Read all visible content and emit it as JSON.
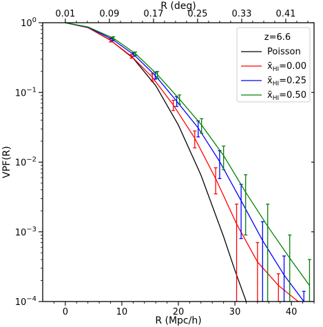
{
  "chart_data": {
    "type": "line",
    "xlabel": "R (Mpc/h)",
    "x2label": "R (deg)",
    "ylabel": "VPF(R)",
    "xlim": [
      -4,
      44
    ],
    "ylim": [
      0.0001,
      1
    ],
    "yscale": "log",
    "x_ticks": [
      0,
      10,
      20,
      30,
      40
    ],
    "x_tick_labels": [
      "0",
      "10",
      "20",
      "30",
      "40"
    ],
    "top_tick_positions": [
      0,
      7.8,
      15.6,
      23.4,
      31.2,
      39.0
    ],
    "top_tick_labels": [
      "0.01",
      "0.09",
      "0.17",
      "0.25",
      "0.33",
      "0.41"
    ],
    "y_ticks": [
      0.0001,
      0.001,
      0.01,
      0.1,
      1
    ],
    "y_tick_labels": [
      {
        "base": "10",
        "exp": "−4"
      },
      {
        "base": "10",
        "exp": "−3"
      },
      {
        "base": "10",
        "exp": "−2"
      },
      {
        "base": "10",
        "exp": "−1"
      },
      {
        "base": "10",
        "exp": "0"
      }
    ],
    "legend": {
      "title": "z=6.6",
      "position": "top-right"
    },
    "series": [
      {
        "name": "Poisson",
        "label_main": "Poisson",
        "label_sub": "",
        "label_value": "",
        "color": "#000000",
        "x": [
          0,
          4,
          8,
          12,
          16,
          20,
          24,
          28,
          30,
          32
        ],
        "y": [
          1.0,
          0.85,
          0.56,
          0.31,
          0.125,
          0.034,
          0.0065,
          0.00085,
          0.00028,
          0.0001
        ],
        "errors": null
      },
      {
        "name": "x_HI=0.00",
        "label_main": "x̄",
        "label_sub": "HI",
        "label_value": "=0.00",
        "color": "#ff0000",
        "x": [
          0,
          4,
          8,
          11.7,
          15.4,
          19.1,
          22.9,
          26.6,
          30.3,
          34.0,
          37.7,
          41.2
        ],
        "y": [
          1.0,
          0.85,
          0.56,
          0.33,
          0.165,
          0.066,
          0.022,
          0.0058,
          0.0013,
          0.00037,
          0.00017,
          0.0001
        ],
        "errors": [
          [
            1.0,
            1.0
          ],
          [
            0.85,
            0.85
          ],
          [
            0.53,
            0.59
          ],
          [
            0.31,
            0.35
          ],
          [
            0.145,
            0.185
          ],
          [
            0.055,
            0.077
          ],
          [
            0.016,
            0.028
          ],
          [
            0.0035,
            0.0083
          ],
          [
            0.0001,
            0.0025
          ],
          [
            0.0001,
            0.0007
          ],
          [
            0.0001,
            0.00025
          ],
          [
            0.0001,
            0.0001
          ]
        ]
      },
      {
        "name": "x_HI=0.25",
        "label_main": "x̄",
        "label_sub": "HI",
        "label_value": "=0.25",
        "color": "#0000ff",
        "x": [
          0,
          4,
          8.3,
          12.1,
          15.9,
          19.7,
          23.5,
          27.3,
          31.1,
          34.9,
          38.7,
          42.2
        ],
        "y": [
          1.0,
          0.86,
          0.58,
          0.35,
          0.175,
          0.075,
          0.031,
          0.0102,
          0.0028,
          0.00075,
          0.00024,
          0.0001
        ],
        "errors": [
          [
            1.0,
            1.0
          ],
          [
            0.86,
            0.86
          ],
          [
            0.55,
            0.61
          ],
          [
            0.33,
            0.37
          ],
          [
            0.155,
            0.195
          ],
          [
            0.063,
            0.087
          ],
          [
            0.023,
            0.039
          ],
          [
            0.0058,
            0.0146
          ],
          [
            0.0008,
            0.0048
          ],
          [
            0.0001,
            0.0014
          ],
          [
            0.0001,
            0.00045
          ],
          [
            0.0001,
            0.00014
          ]
        ]
      },
      {
        "name": "x_HI=0.50",
        "label_main": "x̄",
        "label_sub": "HI",
        "label_value": "=0.50",
        "color": "#008000",
        "x": [
          0,
          4,
          8.5,
          12.4,
          16.3,
          20.2,
          24.1,
          28.0,
          31.9,
          35.8,
          39.7,
          43.2
        ],
        "y": [
          1.0,
          0.87,
          0.6,
          0.36,
          0.18,
          0.08,
          0.034,
          0.0124,
          0.0037,
          0.0012,
          0.00042,
          0.00017
        ],
        "errors": [
          [
            1.0,
            1.0
          ],
          [
            0.87,
            0.87
          ],
          [
            0.57,
            0.63
          ],
          [
            0.34,
            0.38
          ],
          [
            0.16,
            0.2
          ],
          [
            0.068,
            0.092
          ],
          [
            0.026,
            0.042
          ],
          [
            0.0078,
            0.017
          ],
          [
            0.0009,
            0.0066
          ],
          [
            0.0001,
            0.0025
          ],
          [
            0.0001,
            0.0009
          ],
          [
            0.0001,
            0.0004
          ]
        ]
      }
    ]
  }
}
